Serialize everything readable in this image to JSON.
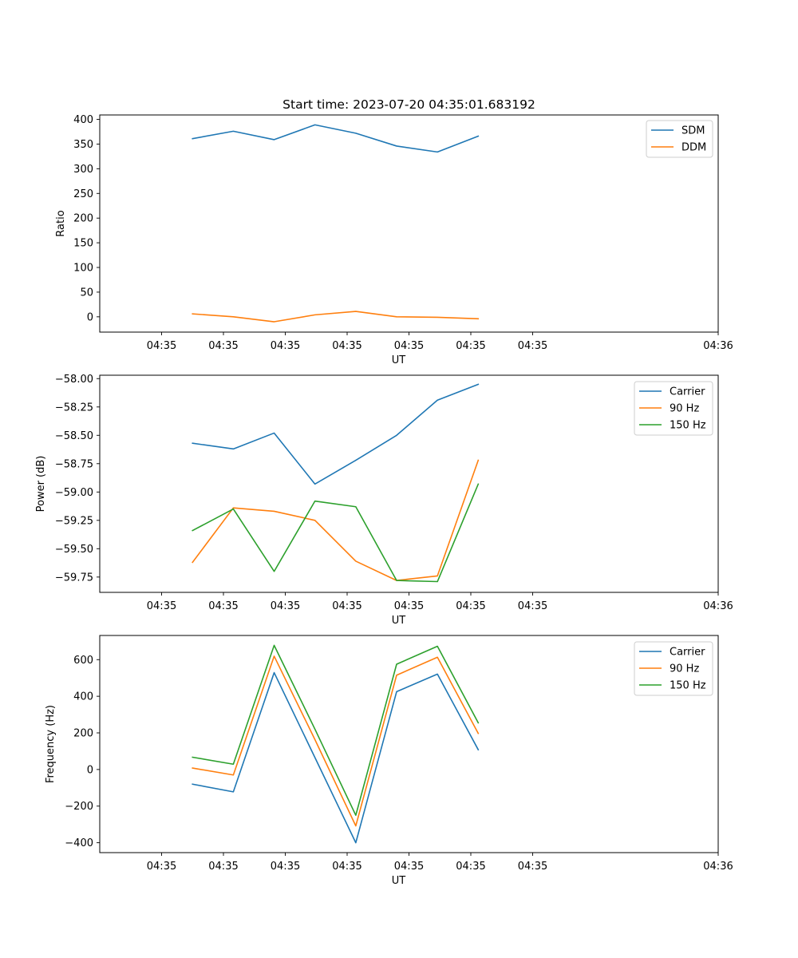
{
  "chart_data": [
    {
      "type": "line",
      "title": "Start time: 2023-07-20 04:35:01.683192",
      "xlabel": "UT",
      "ylabel": "Ratio",
      "x_tick_labels": [
        "04:35",
        "04:35",
        "04:35",
        "04:35",
        "04:35",
        "04:35",
        "04:35"
      ],
      "x_tick_positions": [
        0.85,
        0.9,
        0.95,
        1.0,
        1.05,
        1.1,
        1.15
      ],
      "x_last_tick_label": "04:36",
      "x_last_tick_position": 1.3,
      "xlim": [
        0.8,
        1.3
      ],
      "y_ticks": [
        0,
        50,
        100,
        150,
        200,
        250,
        300,
        350,
        400
      ],
      "y_tick_labels": [
        "0",
        "50",
        "100",
        "150",
        "200",
        "250",
        "300",
        "350",
        "400"
      ],
      "ylim": [
        -31,
        409
      ],
      "x": [
        0.875,
        0.908,
        0.941,
        0.974,
        1.007,
        1.04,
        1.073,
        1.106
      ],
      "legend_loc": "top-right",
      "series": [
        {
          "name": "SDM",
          "color": "#1f77b4",
          "values": [
            361,
            376,
            359,
            389,
            372,
            346,
            334,
            366
          ]
        },
        {
          "name": "DDM",
          "color": "#ff7f0e",
          "values": [
            6,
            0,
            -10,
            4,
            11,
            0,
            -1,
            -4
          ]
        }
      ]
    },
    {
      "type": "line",
      "title": "",
      "xlabel": "UT",
      "ylabel": "Power (dB)",
      "x_tick_labels": [
        "04:35",
        "04:35",
        "04:35",
        "04:35",
        "04:35",
        "04:35",
        "04:35"
      ],
      "x_tick_positions": [
        0.85,
        0.9,
        0.95,
        1.0,
        1.05,
        1.1,
        1.15
      ],
      "x_last_tick_label": "04:36",
      "x_last_tick_position": 1.3,
      "xlim": [
        0.8,
        1.3
      ],
      "y_ticks": [
        -59.75,
        -59.5,
        -59.25,
        -59.0,
        -58.75,
        -58.5,
        -58.25,
        -58.0
      ],
      "y_tick_labels": [
        "−59.75",
        "−59.50",
        "−59.25",
        "−59.00",
        "−58.75",
        "−58.50",
        "−58.25",
        "−58.00"
      ],
      "ylim": [
        -59.885,
        -57.97
      ],
      "x": [
        0.875,
        0.908,
        0.941,
        0.974,
        1.007,
        1.04,
        1.073,
        1.106
      ],
      "legend_loc": "top-right",
      "series": [
        {
          "name": "Carrier",
          "color": "#1f77b4",
          "values": [
            -58.57,
            -58.62,
            -58.48,
            -58.93,
            -58.72,
            -58.5,
            -58.19,
            -58.05
          ]
        },
        {
          "name": "90 Hz",
          "color": "#ff7f0e",
          "values": [
            -59.62,
            -59.14,
            -59.17,
            -59.25,
            -59.61,
            -59.78,
            -59.74,
            -58.72
          ]
        },
        {
          "name": "150 Hz",
          "color": "#2ca02c",
          "values": [
            -59.34,
            -59.15,
            -59.7,
            -59.08,
            -59.13,
            -59.78,
            -59.79,
            -58.93
          ]
        }
      ]
    },
    {
      "type": "line",
      "title": "",
      "xlabel": "UT",
      "ylabel": "Frequency (Hz)",
      "x_tick_labels": [
        "04:35",
        "04:35",
        "04:35",
        "04:35",
        "04:35",
        "04:35",
        "04:35"
      ],
      "x_tick_positions": [
        0.85,
        0.9,
        0.95,
        1.0,
        1.05,
        1.1,
        1.15
      ],
      "x_last_tick_label": "04:36",
      "x_last_tick_position": 1.3,
      "xlim": [
        0.8,
        1.3
      ],
      "y_ticks": [
        -400,
        -200,
        0,
        200,
        400,
        600
      ],
      "y_tick_labels": [
        "−400",
        "−200",
        "0",
        "200",
        "400",
        "600"
      ],
      "ylim": [
        -454,
        732
      ],
      "x": [
        0.875,
        0.908,
        0.941,
        0.974,
        1.007,
        1.04,
        1.073,
        1.106
      ],
      "legend_loc": "top-right",
      "series": [
        {
          "name": "Carrier",
          "color": "#1f77b4",
          "values": [
            -80,
            -122,
            529,
            65,
            -400,
            425,
            521,
            108
          ]
        },
        {
          "name": "90 Hz",
          "color": "#ff7f0e",
          "values": [
            8,
            -30,
            619,
            163,
            -308,
            515,
            613,
            197
          ]
        },
        {
          "name": "150 Hz",
          "color": "#2ca02c",
          "values": [
            67,
            29,
            678,
            220,
            -250,
            575,
            673,
            255
          ]
        }
      ]
    }
  ]
}
